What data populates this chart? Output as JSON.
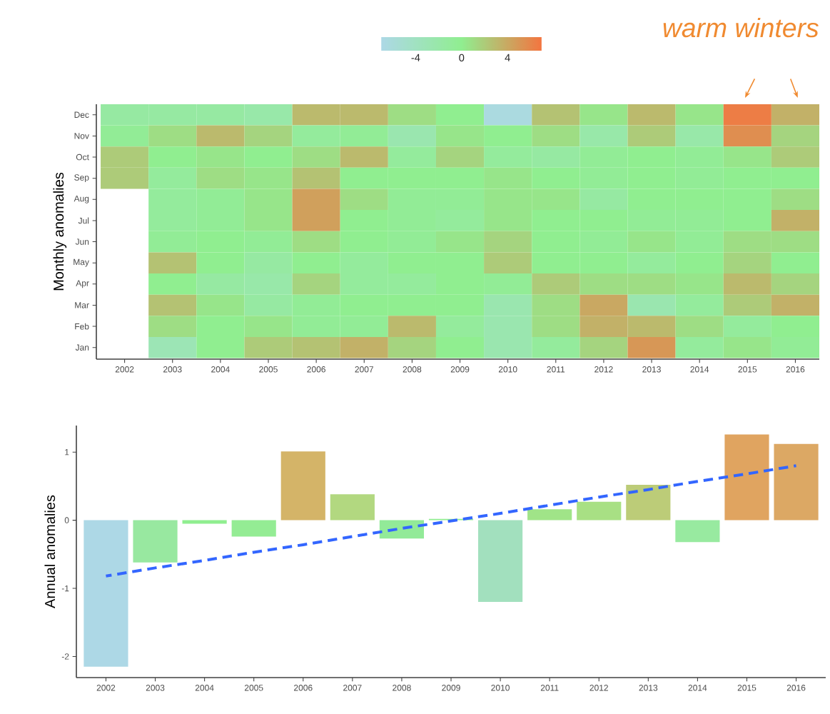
{
  "chart_data": [
    {
      "type": "heatmap",
      "ylabel": "Monthly anomalies",
      "categories": [
        "2002",
        "2003",
        "2004",
        "2005",
        "2006",
        "2007",
        "2008",
        "2009",
        "2010",
        "2011",
        "2012",
        "2013",
        "2014",
        "2015",
        "2016"
      ],
      "y_categories": [
        "Dec",
        "Nov",
        "Oct",
        "Sep",
        "Aug",
        "Jul",
        "Jun",
        "May",
        "Apr",
        "Mar",
        "Feb",
        "Jan"
      ],
      "cells": [
        [
          -1.5,
          -1.5,
          -1.5,
          -2,
          3,
          3,
          1,
          0,
          -6.5,
          2.5,
          0.5,
          3,
          0.5,
          6.5,
          3.5
        ],
        [
          -0.5,
          1,
          3,
          1.5,
          -1,
          -0.5,
          -2.5,
          0.5,
          0,
          1,
          -2,
          2,
          -2,
          5.5,
          1.5
        ],
        [
          2,
          0,
          0.5,
          0,
          1,
          3,
          -1,
          1.5,
          -1,
          -1.5,
          -0.5,
          0,
          -0.5,
          0.5,
          2
        ],
        [
          2,
          -1,
          1,
          0.5,
          2.5,
          0,
          0,
          0,
          0.5,
          0,
          -0.5,
          0,
          -0.5,
          0,
          0
        ],
        [
          null,
          -1,
          -0.5,
          0.5,
          4.5,
          1,
          -0.5,
          -0.5,
          0.5,
          0.5,
          -1.5,
          0,
          0,
          0,
          1
        ],
        [
          null,
          -1,
          -0.5,
          0.5,
          4.5,
          0,
          -0.5,
          -1,
          0.5,
          0,
          0,
          -0.5,
          -0.5,
          0,
          3.5
        ],
        [
          null,
          -0.5,
          0,
          -0.5,
          1,
          0,
          -0.5,
          0.5,
          1.5,
          0,
          -0.5,
          0.5,
          -0.5,
          1,
          1
        ],
        [
          null,
          2.5,
          0,
          -1.5,
          0,
          -1,
          0,
          0,
          2,
          0,
          0,
          -1,
          0,
          1.5,
          0
        ],
        [
          null,
          0,
          -1.5,
          -2,
          1.5,
          -1,
          -1,
          0,
          -0.5,
          2,
          1,
          1,
          0.5,
          3,
          1.5
        ],
        [
          null,
          2.5,
          0.5,
          -1.5,
          -0.5,
          0,
          0,
          0,
          -2.5,
          1,
          4,
          -2.5,
          -1,
          2,
          3.5
        ],
        [
          null,
          1,
          0,
          0.5,
          -0.5,
          -0.5,
          3,
          -1,
          -2.5,
          1,
          3.5,
          3,
          1,
          -1,
          0
        ],
        [
          null,
          -3,
          0,
          2,
          2.5,
          3.5,
          1.5,
          0,
          -2.5,
          -1,
          1.5,
          5,
          -1,
          0.5,
          -0.5
        ]
      ],
      "clim": [
        -7,
        7
      ],
      "cticks": [
        -4,
        0,
        4
      ],
      "annotations": [
        "warm winters"
      ]
    },
    {
      "type": "bar",
      "ylabel": "Annual anomalies",
      "categories": [
        "2002",
        "2003",
        "2004",
        "2005",
        "2006",
        "2007",
        "2008",
        "2009",
        "2010",
        "2011",
        "2012",
        "2013",
        "2014",
        "2015",
        "2016"
      ],
      "series": [
        {
          "type": "bar",
          "colors": [
            "#add8e6",
            "#98e8a0",
            "#90ee90",
            "#94ec94",
            "#d4b468",
            "#b2d880",
            "#92ea98",
            "#90ee90",
            "#a2e0be",
            "#a0e488",
            "#a8e084",
            "#bccc78",
            "#98eaa0",
            "#e0a460",
            "#dca864"
          ],
          "values": [
            -2.15,
            -0.62,
            -0.05,
            -0.24,
            1.01,
            0.38,
            -0.27,
            0.02,
            -1.2,
            0.16,
            0.27,
            0.52,
            -0.32,
            1.26,
            1.12
          ]
        },
        {
          "type": "line",
          "values": [
            -0.82,
            -0.7,
            -0.59,
            -0.47,
            -0.36,
            -0.24,
            -0.12,
            -0.01,
            0.1,
            0.22,
            0.34,
            0.45,
            0.57,
            0.68,
            0.8
          ],
          "color": "#3366ff",
          "line_style": "dashed"
        }
      ],
      "ylim": [
        -2.31,
        1.39
      ],
      "yticks": [
        -2,
        -1,
        0,
        1
      ]
    }
  ]
}
